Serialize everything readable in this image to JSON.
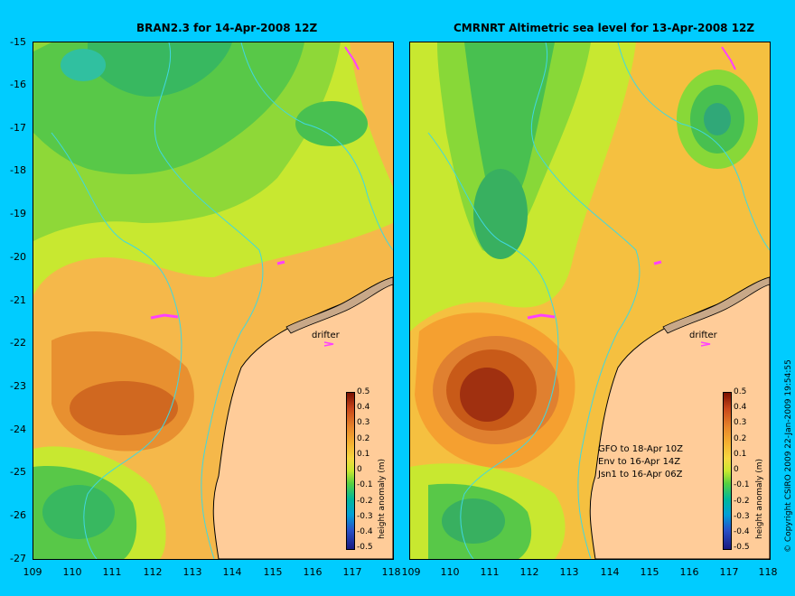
{
  "left_panel": {
    "title": "BRAN2.3 for 14-Apr-2008 12Z",
    "drifter_label": "drifter",
    "colorbar_title": "height anomaly (m)"
  },
  "right_panel": {
    "title": "CMRNRT Altimetric sea level  for 13-Apr-2008 12Z",
    "drifter_label": "drifter",
    "colorbar_title": "height anomaly (m)",
    "satellite_info": [
      "GFO to 18-Apr 10Z",
      "Env to 16-Apr 14Z",
      "Jsn1 to 16-Apr 06Z"
    ]
  },
  "y_axis_ticks": [
    "-15",
    "-16",
    "-17",
    "-18",
    "-19",
    "-20",
    "-21",
    "-22",
    "-23",
    "-24",
    "-25",
    "-26",
    "-27"
  ],
  "x_axis_ticks": [
    "109",
    "110",
    "111",
    "112",
    "113",
    "114",
    "115",
    "116",
    "117",
    "118"
  ],
  "colorbar_ticks": [
    "0.5",
    "0.4",
    "0.3",
    "0.2",
    "0.1",
    "0",
    "-0.1",
    "-0.2",
    "-0.3",
    "-0.4",
    "-0.5"
  ],
  "colorbar_colors": [
    "#7a1000",
    "#c8461a",
    "#e8862a",
    "#f5b030",
    "#f7d840",
    "#c8e830",
    "#58d040",
    "#00b89a",
    "#00a0d8",
    "#2850c8",
    "#1a1a80"
  ],
  "land_color": "#ffcc99",
  "copyright": "© Copyright CSIRO 2009   22-Jan-2009 19:54:55"
}
